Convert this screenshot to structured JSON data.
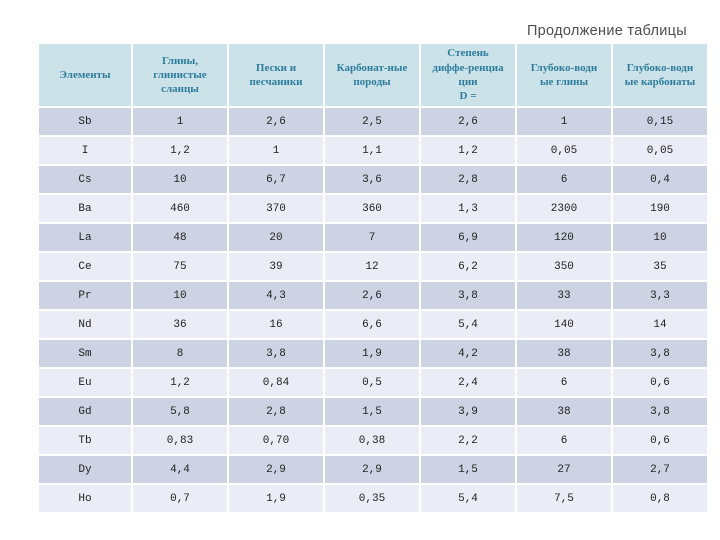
{
  "page": {
    "title": "Продолжение таблицы"
  },
  "colors": {
    "header-bg": "#cbe2e8",
    "header-text": "#2e7d9e",
    "row-odd-bg": "#cdd3e3",
    "row-even-bg": "#eaedf5",
    "cell-text": "#222222",
    "title-text": "#4e4e4e"
  },
  "table": {
    "headers": [
      "Элементы",
      "Глины,\nглинистые\nсланцы",
      "Пески и\nпесчаники",
      "Карбонат-ные\nпороды",
      "Степень\nдиффе-ренциа\nции\nD =",
      "Глубоко-водн\nые глины",
      "Глубоко-водн\nые карбонаты"
    ],
    "rows": [
      [
        "Sb",
        "1",
        "2,6",
        "2,5",
        "2,6",
        "1",
        "0,15"
      ],
      [
        "I",
        "1,2",
        "1",
        "1,1",
        "1,2",
        "0,05",
        "0,05"
      ],
      [
        "Cs",
        "10",
        "6,7",
        "3,6",
        "2,8",
        "6",
        "0,4"
      ],
      [
        "Ba",
        "460",
        "370",
        "360",
        "1,3",
        "2300",
        "190"
      ],
      [
        "La",
        "48",
        "20",
        "7",
        "6,9",
        "120",
        "10"
      ],
      [
        "Ce",
        "75",
        "39",
        "12",
        "6,2",
        "350",
        "35"
      ],
      [
        "Pr",
        "10",
        "4,3",
        "2,6",
        "3,8",
        "33",
        "3,3"
      ],
      [
        "Nd",
        "36",
        "16",
        "6,6",
        "5,4",
        "140",
        "14"
      ],
      [
        "Sm",
        "8",
        "3,8",
        "1,9",
        "4,2",
        "38",
        "3,8"
      ],
      [
        "Eu",
        "1,2",
        "0,84",
        "0,5",
        "2,4",
        "6",
        "0,6"
      ],
      [
        "Gd",
        "5,8",
        "2,8",
        "1,5",
        "3,9",
        "38",
        "3,8"
      ],
      [
        "Tb",
        "0,83",
        "0,70",
        "0,38",
        "2,2",
        "6",
        "0,6"
      ],
      [
        "Dy",
        "4,4",
        "2,9",
        "2,9",
        "1,5",
        "27",
        "2,7"
      ],
      [
        "Ho",
        "0,7",
        "1,9",
        "0,35",
        "5,4",
        "7,5",
        "0,8"
      ]
    ]
  }
}
